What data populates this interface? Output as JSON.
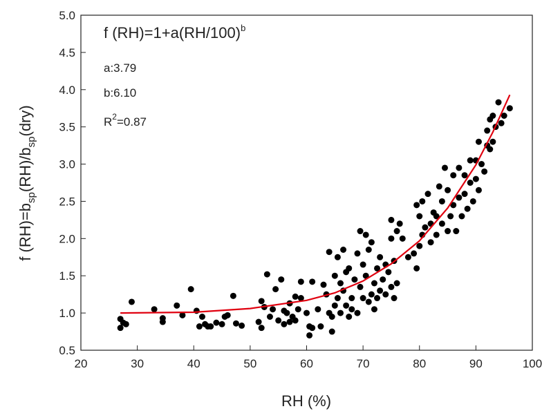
{
  "chart_data": {
    "type": "scatter",
    "annotation": {
      "formula": "f (RH)=1+a(RH/100)",
      "formula_exp": "b",
      "a": "a:3.79",
      "b": "b:6.10",
      "r_base": "R",
      "r_exp": "2",
      "r_rest": "=0.87"
    },
    "y_label": [
      "f (RH)=b",
      "sp",
      "(RH)/b",
      "sp",
      "(dry)"
    ],
    "x_label": "RH (%)",
    "xlim": [
      20,
      100
    ],
    "xticks": [
      20,
      30,
      40,
      50,
      60,
      70,
      80,
      90,
      100
    ],
    "ylim": [
      0.5,
      5.0
    ],
    "yticks": [
      0.5,
      {
        "value": 1,
        "label": "1.0"
      },
      1.5,
      {
        "value": 2,
        "label": "2.0"
      },
      2.5,
      {
        "value": 3,
        "label": "3.0"
      },
      3.5,
      {
        "value": 4,
        "label": "4.0"
      },
      4.5,
      {
        "value": 5,
        "label": "5.0"
      }
    ],
    "series": [
      {
        "type": "scatter",
        "color": "#000000",
        "x": [
          27,
          27,
          27.5,
          28,
          29,
          33,
          34.5,
          34.5,
          37,
          38,
          39.5,
          40.5,
          41,
          41.5,
          42,
          42.5,
          43,
          44,
          45,
          45.5,
          46,
          47,
          48.5,
          47.5,
          51.5,
          52,
          52,
          52.5,
          53,
          53.5,
          54,
          54.5,
          55,
          55.5,
          56,
          56,
          56.5,
          57,
          57,
          57.5,
          58,
          58.5,
          58,
          59,
          59,
          60,
          60.5,
          60.5,
          61,
          61,
          62,
          62.5,
          63,
          63.5,
          64,
          64,
          64.5,
          64.5,
          65,
          65,
          65.5,
          65.5,
          66,
          66,
          66.5,
          66.5,
          67,
          67,
          67.5,
          67.5,
          68,
          68,
          68.5,
          69,
          69,
          69.5,
          69.5,
          70,
          70,
          70.5,
          70.5,
          71,
          71,
          71.5,
          71.5,
          72,
          72,
          72.5,
          72.5,
          73,
          73,
          73.5,
          74,
          74,
          74.5,
          75,
          75,
          75,
          75.5,
          75.5,
          76,
          76,
          76.5,
          77,
          78,
          79,
          79.5,
          79.5,
          80,
          80,
          80.5,
          80.5,
          81,
          81.5,
          82,
          82,
          82.5,
          83,
          83,
          83.5,
          84,
          84,
          84.5,
          85,
          85,
          85.5,
          86,
          86,
          86.5,
          87,
          87,
          87.5,
          88,
          88,
          88.5,
          89,
          89,
          89.5,
          90,
          90,
          90.5,
          90.5,
          91,
          91.5,
          92,
          92,
          92.5,
          92.5,
          93,
          93,
          93.5,
          94,
          94.5,
          95,
          96
        ],
        "values": [
          0.8,
          0.92,
          0.87,
          0.85,
          1.15,
          1.05,
          0.93,
          0.88,
          1.1,
          0.97,
          1.32,
          1.03,
          0.82,
          0.95,
          0.85,
          0.82,
          0.82,
          0.87,
          0.85,
          0.95,
          0.97,
          1.23,
          0.83,
          0.86,
          0.88,
          1.16,
          0.8,
          1.08,
          1.52,
          0.95,
          1.05,
          1.32,
          0.9,
          1.45,
          1.03,
          0.85,
          1.0,
          0.88,
          1.13,
          0.95,
          1.22,
          1.05,
          0.9,
          1.2,
          1.42,
          1.0,
          0.82,
          0.7,
          1.42,
          0.8,
          1.05,
          0.82,
          1.38,
          1.25,
          1.0,
          1.82,
          0.75,
          0.95,
          1.1,
          1.5,
          1.75,
          1.2,
          1.0,
          1.4,
          1.3,
          1.85,
          1.1,
          1.55,
          0.95,
          1.6,
          1.2,
          1.05,
          1.45,
          1.8,
          1.0,
          2.1,
          1.35,
          1.65,
          1.2,
          1.5,
          2.05,
          1.15,
          1.85,
          1.25,
          1.95,
          1.4,
          1.05,
          1.6,
          1.2,
          1.3,
          1.75,
          1.45,
          1.65,
          1.25,
          1.55,
          2.0,
          1.35,
          2.25,
          1.7,
          1.2,
          2.1,
          1.4,
          2.2,
          2.0,
          1.75,
          1.8,
          2.45,
          1.6,
          2.3,
          1.9,
          2.5,
          2.05,
          2.15,
          2.6,
          2.2,
          1.95,
          2.35,
          2.3,
          2.05,
          2.7,
          2.5,
          2.2,
          2.95,
          2.1,
          2.65,
          2.3,
          2.85,
          2.45,
          2.1,
          2.95,
          2.55,
          2.3,
          2.85,
          2.6,
          2.4,
          2.75,
          3.05,
          2.5,
          2.8,
          3.05,
          3.3,
          2.65,
          3.0,
          2.9,
          3.45,
          3.25,
          3.6,
          3.2,
          3.3,
          3.65,
          3.5,
          3.83,
          3.55,
          3.65,
          3.75
        ]
      },
      {
        "type": "line",
        "color": "#e0000f",
        "x": [
          27,
          40,
          50,
          60,
          65,
          70,
          75,
          80,
          85,
          90,
          93,
          96
        ],
        "values": [
          1.0,
          1.01,
          1.06,
          1.17,
          1.27,
          1.43,
          1.66,
          1.97,
          2.41,
          2.99,
          3.43,
          3.93
        ]
      }
    ]
  }
}
